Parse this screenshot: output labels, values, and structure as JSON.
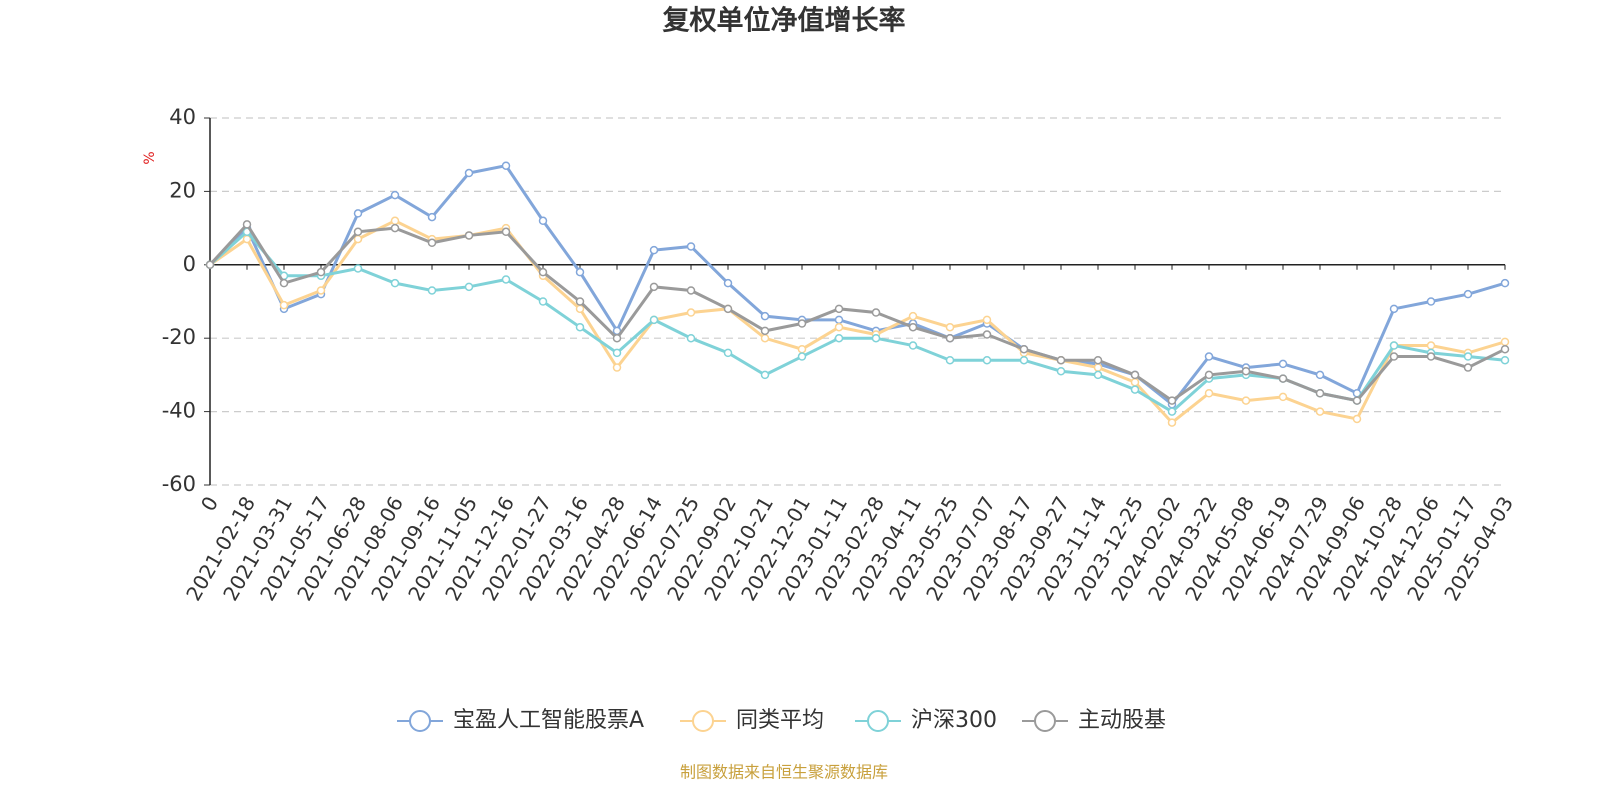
{
  "chart_data": {
    "type": "line",
    "title": "复权单位净值增长率",
    "y_label": "%",
    "footer": "制图数据来自恒生聚源数据库",
    "categories": [
      "0",
      "2021-02-18",
      "2021-03-31",
      "2021-05-17",
      "2021-06-28",
      "2021-08-06",
      "2021-09-16",
      "2021-11-05",
      "2021-12-16",
      "2022-01-27",
      "2022-03-16",
      "2022-04-28",
      "2022-06-14",
      "2022-07-25",
      "2022-09-02",
      "2022-10-21",
      "2022-12-01",
      "2023-01-11",
      "2023-02-28",
      "2023-04-11",
      "2023-05-25",
      "2023-07-07",
      "2023-08-17",
      "2023-09-27",
      "2023-11-14",
      "2023-12-25",
      "2024-02-02",
      "2024-03-22",
      "2024-05-08",
      "2024-06-19",
      "2024-07-29",
      "2024-09-06",
      "2024-10-28",
      "2024-12-06",
      "2025-01-17",
      "2025-04-03"
    ],
    "series": [
      {
        "name": "宝盈人工智能股票A",
        "color": "#82a6da",
        "values": [
          0,
          10,
          -12,
          -8,
          14,
          19,
          13,
          25,
          27,
          12,
          -2,
          -18,
          4,
          5,
          -5,
          -14,
          -15,
          -15,
          -18,
          -16,
          -20,
          -16,
          -23,
          -26,
          -27,
          -30,
          -38,
          -25,
          -28,
          -27,
          -30,
          -35,
          -12,
          -10,
          -8,
          -5
        ]
      },
      {
        "name": "同类平均",
        "color": "#fcd391",
        "values": [
          0,
          7,
          -11,
          -7,
          7,
          12,
          7,
          8,
          10,
          -3,
          -12,
          -28,
          -15,
          -13,
          -12,
          -20,
          -23,
          -17,
          -19,
          -14,
          -17,
          -15,
          -24,
          -26,
          -28,
          -32,
          -43,
          -35,
          -37,
          -36,
          -40,
          -42,
          -22,
          -22,
          -24,
          -21
        ]
      },
      {
        "name": "沪深300",
        "color": "#7fd2d8",
        "values": [
          0,
          9,
          -3,
          -3,
          -1,
          -5,
          -7,
          -6,
          -4,
          -10,
          -17,
          -24,
          -15,
          -20,
          -24,
          -30,
          -25,
          -20,
          -20,
          -22,
          -26,
          -26,
          -26,
          -29,
          -30,
          -34,
          -40,
          -31,
          -30,
          -31,
          -35,
          -37,
          -22,
          -24,
          -25,
          -26
        ]
      },
      {
        "name": "主动股基",
        "color": "#9a9a9a",
        "values": [
          0,
          11,
          -5,
          -2,
          9,
          10,
          6,
          8,
          9,
          -2,
          -10,
          -20,
          -6,
          -7,
          -12,
          -18,
          -16,
          -12,
          -13,
          -17,
          -20,
          -19,
          -23,
          -26,
          -26,
          -30,
          -37,
          -30,
          -29,
          -31,
          -35,
          -37,
          -25,
          -25,
          -28,
          -23
        ]
      }
    ],
    "ylim": [
      -60,
      40
    ],
    "yticks": [
      -60,
      -40,
      -20,
      0,
      20,
      40
    ],
    "grid": true
  }
}
